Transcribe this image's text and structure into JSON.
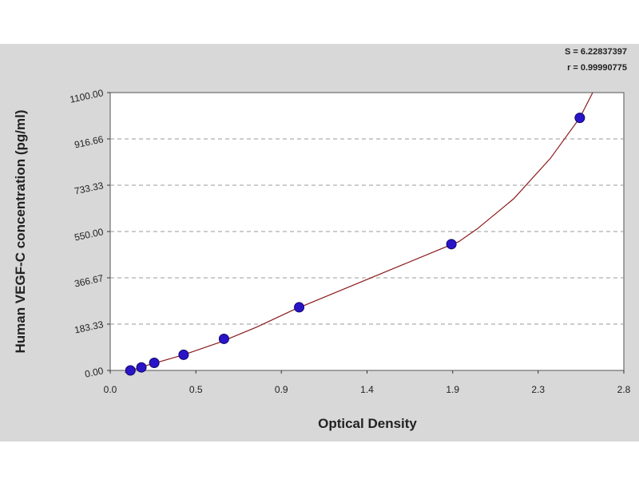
{
  "colors": {
    "background": "#ffffff",
    "frame": "#d8d8d8",
    "plot_bg": "#ffffff",
    "curve": "#8b1a1a",
    "point": "#2a14c8",
    "grid": "#999999"
  },
  "chart_data": {
    "type": "scatter",
    "xlabel": "Optical Density",
    "ylabel": "Human VEGF-C concentration (pg/ml)",
    "xlim": [
      0.0,
      2.8
    ],
    "ylim": [
      0.0,
      1100.0
    ],
    "x_ticks": [
      "0.0",
      "0.5",
      "0.9",
      "1.4",
      "1.9",
      "2.3",
      "2.8"
    ],
    "x_tick_values": [
      0.0,
      0.467,
      0.933,
      1.4,
      1.867,
      2.333,
      2.8
    ],
    "y_ticks": [
      "0.00",
      "183.33",
      "366.67",
      "550.00",
      "733.33",
      "916.66",
      "1100.00"
    ],
    "y_tick_values": [
      0.0,
      183.33,
      366.67,
      550.0,
      733.33,
      916.66,
      1100.0
    ],
    "grid": "horizontal-dashed",
    "points": {
      "x": [
        0.11,
        0.17,
        0.24,
        0.4,
        0.62,
        1.03,
        1.86,
        2.56
      ],
      "y": [
        0,
        12,
        30,
        62,
        125,
        250,
        500,
        1000
      ]
    },
    "curve": {
      "x": [
        0.08,
        0.2,
        0.4,
        0.6,
        0.8,
        1.0,
        1.2,
        1.4,
        1.6,
        1.8,
        1.9,
        2.0,
        2.2,
        2.4,
        2.56,
        2.63
      ],
      "y": [
        -8,
        20,
        62,
        112,
        172,
        240,
        300,
        360,
        420,
        480,
        510,
        560,
        680,
        840,
        1000,
        1100
      ]
    },
    "stats": [
      "S = 6.22837397",
      "r = 0.99990775"
    ]
  }
}
